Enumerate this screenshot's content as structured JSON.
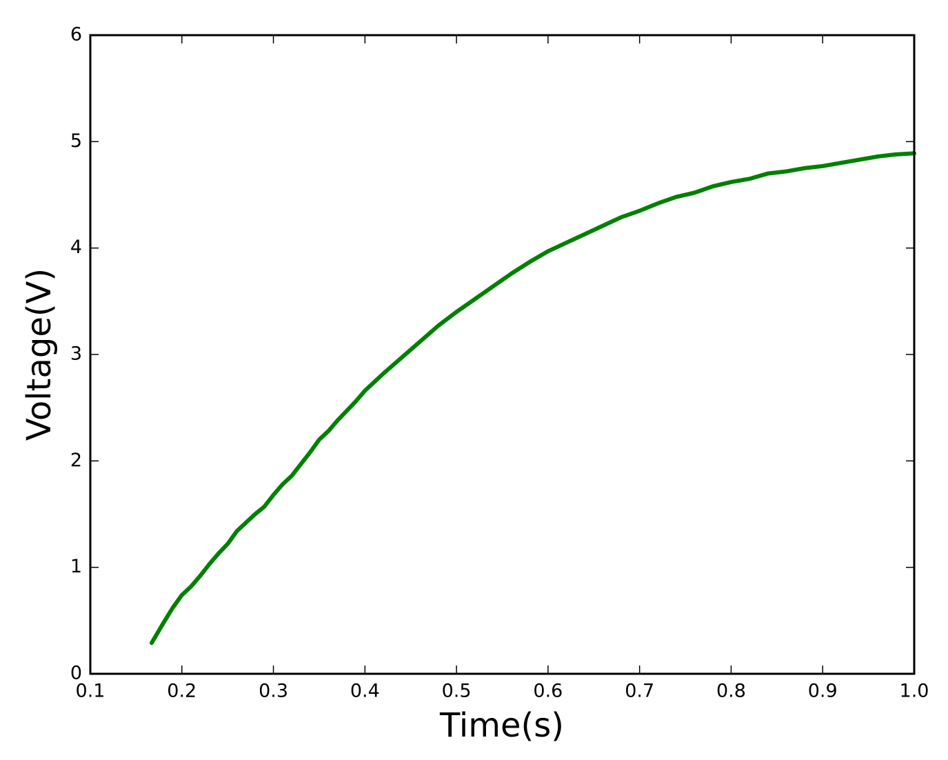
{
  "chart_data": {
    "type": "line",
    "xlabel": "Time(s)",
    "ylabel": "Voltage(V)",
    "x": [
      0.167,
      0.18,
      0.19,
      0.2,
      0.21,
      0.22,
      0.23,
      0.24,
      0.25,
      0.26,
      0.27,
      0.28,
      0.29,
      0.3,
      0.31,
      0.32,
      0.33,
      0.34,
      0.35,
      0.36,
      0.37,
      0.38,
      0.39,
      0.4,
      0.42,
      0.44,
      0.46,
      0.48,
      0.5,
      0.52,
      0.54,
      0.56,
      0.58,
      0.6,
      0.62,
      0.64,
      0.66,
      0.68,
      0.7,
      0.72,
      0.74,
      0.76,
      0.78,
      0.8,
      0.82,
      0.84,
      0.86,
      0.88,
      0.9,
      0.92,
      0.94,
      0.96,
      0.98,
      1.0
    ],
    "values": [
      0.29,
      0.48,
      0.62,
      0.74,
      0.82,
      0.92,
      1.03,
      1.13,
      1.22,
      1.34,
      1.42,
      1.5,
      1.57,
      1.68,
      1.78,
      1.86,
      1.97,
      2.08,
      2.2,
      2.28,
      2.38,
      2.47,
      2.56,
      2.66,
      2.82,
      2.97,
      3.12,
      3.27,
      3.4,
      3.52,
      3.64,
      3.76,
      3.87,
      3.97,
      4.05,
      4.13,
      4.21,
      4.29,
      4.35,
      4.42,
      4.48,
      4.52,
      4.58,
      4.62,
      4.65,
      4.7,
      4.72,
      4.75,
      4.77,
      4.8,
      4.83,
      4.86,
      4.88,
      4.89
    ],
    "color": "#008000",
    "xlim": [
      0.1,
      1.0
    ],
    "xticks": [
      0.1,
      0.2,
      0.3,
      0.4,
      0.5,
      0.6,
      0.7,
      0.8,
      0.9,
      {
        "value": 1.0,
        "label": "1.0"
      }
    ],
    "ylim": [
      0,
      6
    ],
    "yticks": [
      0,
      1,
      2,
      3,
      4,
      5,
      6
    ]
  }
}
